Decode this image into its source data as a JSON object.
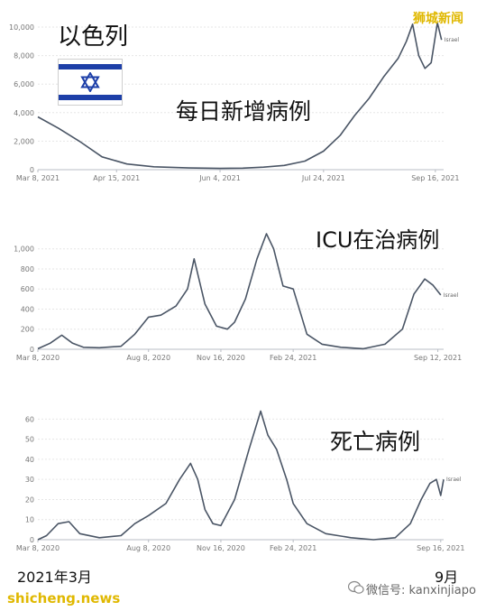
{
  "overlay": {
    "country": "以色列",
    "chart1_label": "每日新增病例",
    "chart2_label": "ICU在治病例",
    "chart3_label": "死亡病例",
    "start_note": "2021年3月",
    "end_note": "9月",
    "watermark_top": "狮城新闻",
    "watermark_bottom_left": "shicheng.news",
    "watermark_bottom_right": "微信号: kanxinjiapo"
  },
  "colors": {
    "line": "#4a5565",
    "axis": "#b8bcc4",
    "tick": "#777777",
    "watermark": "#e0b800",
    "flag_blue": "#1d3fa8"
  },
  "icons": [
    "israel-flag-icon",
    "star-of-david-icon",
    "wechat-icon"
  ],
  "chart_data": [
    {
      "type": "line",
      "title": "",
      "series": [
        {
          "name": "Israel",
          "x": [
            "2021-03-08",
            "2021-03-18",
            "2021-03-28",
            "2021-04-08",
            "2021-04-20",
            "2021-05-03",
            "2021-05-20",
            "2021-06-04",
            "2021-06-15",
            "2021-06-25",
            "2021-07-05",
            "2021-07-15",
            "2021-07-24",
            "2021-08-01",
            "2021-08-08",
            "2021-08-15",
            "2021-08-22",
            "2021-08-29",
            "2021-09-02",
            "2021-09-05",
            "2021-09-08",
            "2021-09-11",
            "2021-09-14",
            "2021-09-17",
            "2021-09-19"
          ],
          "values": [
            3700,
            2900,
            2000,
            900,
            400,
            200,
            120,
            90,
            110,
            180,
            300,
            600,
            1300,
            2400,
            3800,
            5000,
            6500,
            7800,
            9000,
            10200,
            8000,
            7100,
            7500,
            10300,
            9100
          ]
        }
      ],
      "x_ticks": [
        "Mar 8, 2021",
        "Apr 15, 2021",
        "Jun 4, 2021",
        "Jul 24, 2021",
        "Sep 16, 2021"
      ],
      "x_tick_dates": [
        "2021-03-08",
        "2021-04-15",
        "2021-06-04",
        "2021-07-24",
        "2021-09-16"
      ],
      "y_ticks": [
        "0",
        "2,000",
        "4,000",
        "6,000",
        "8,000",
        "10,000"
      ],
      "ylim": [
        0,
        10000
      ],
      "xlim": [
        "2021-03-08",
        "2021-09-20"
      ],
      "grid": true
    },
    {
      "type": "line",
      "title": "",
      "series": [
        {
          "name": "Israel",
          "x": [
            "2020-03-08",
            "2020-03-25",
            "2020-04-10",
            "2020-04-25",
            "2020-05-10",
            "2020-06-01",
            "2020-07-01",
            "2020-07-20",
            "2020-08-08",
            "2020-08-25",
            "2020-09-15",
            "2020-10-01",
            "2020-10-10",
            "2020-10-25",
            "2020-11-10",
            "2020-11-25",
            "2020-12-05",
            "2020-12-20",
            "2021-01-05",
            "2021-01-18",
            "2021-01-28",
            "2021-02-10",
            "2021-02-24",
            "2021-03-15",
            "2021-04-05",
            "2021-05-01",
            "2021-06-01",
            "2021-07-01",
            "2021-07-25",
            "2021-08-10",
            "2021-08-25",
            "2021-09-05",
            "2021-09-16"
          ],
          "values": [
            5,
            60,
            140,
            60,
            20,
            15,
            30,
            150,
            320,
            340,
            430,
            600,
            900,
            450,
            230,
            200,
            270,
            500,
            900,
            1150,
            1000,
            630,
            600,
            150,
            50,
            20,
            5,
            50,
            200,
            550,
            700,
            640,
            540
          ]
        }
      ],
      "x_ticks": [
        "Mar 8, 2020",
        "Aug 8, 2020",
        "Nov 16, 2020",
        "Feb 24, 2021",
        "Sep 12, 2021"
      ],
      "x_tick_dates": [
        "2020-03-08",
        "2020-08-08",
        "2020-11-16",
        "2021-02-24",
        "2021-09-12"
      ],
      "y_ticks": [
        "0",
        "200",
        "400",
        "600",
        "800",
        "1,000"
      ],
      "ylim": [
        0,
        1150
      ],
      "xlim": [
        "2020-03-08",
        "2021-09-20"
      ],
      "grid": true
    },
    {
      "type": "line",
      "title": "",
      "series": [
        {
          "name": "Israel",
          "x": [
            "2020-03-08",
            "2020-03-20",
            "2020-04-05",
            "2020-04-20",
            "2020-05-05",
            "2020-06-01",
            "2020-07-01",
            "2020-07-20",
            "2020-08-08",
            "2020-09-01",
            "2020-09-20",
            "2020-10-05",
            "2020-10-15",
            "2020-10-25",
            "2020-11-05",
            "2020-11-16",
            "2020-12-05",
            "2020-12-25",
            "2021-01-10",
            "2021-01-20",
            "2021-02-01",
            "2021-02-15",
            "2021-02-24",
            "2021-03-15",
            "2021-04-10",
            "2021-05-15",
            "2021-06-15",
            "2021-07-15",
            "2021-08-05",
            "2021-08-20",
            "2021-09-01",
            "2021-09-10",
            "2021-09-16",
            "2021-09-20"
          ],
          "values": [
            0,
            2,
            8,
            9,
            3,
            1,
            2,
            8,
            12,
            18,
            30,
            38,
            30,
            15,
            8,
            7,
            20,
            45,
            64,
            52,
            45,
            30,
            18,
            8,
            3,
            1,
            0,
            1,
            8,
            20,
            28,
            30,
            22,
            30
          ]
        }
      ],
      "x_ticks": [
        "Mar 8, 2020",
        "Aug 8, 2020",
        "Nov 16, 2020",
        "Feb 24, 2021",
        "Sep 16, 2021"
      ],
      "x_tick_dates": [
        "2020-03-08",
        "2020-08-08",
        "2020-11-16",
        "2021-02-24",
        "2021-09-16"
      ],
      "y_ticks": [
        "0",
        "10",
        "20",
        "30",
        "40",
        "50",
        "60"
      ],
      "ylim": [
        0,
        66
      ],
      "xlim": [
        "2020-03-08",
        "2021-09-20"
      ],
      "grid": true
    }
  ]
}
